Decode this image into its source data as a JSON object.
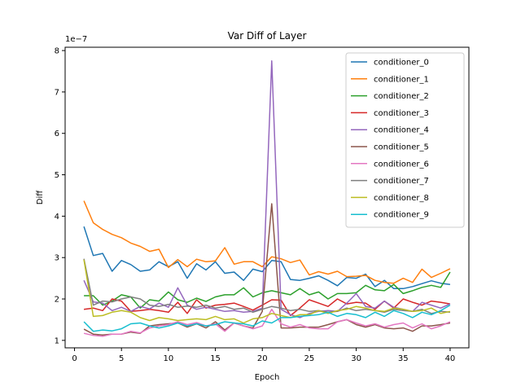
{
  "chart_data": {
    "type": "line",
    "title": "Var Diff of Layer",
    "xlabel": "Epoch",
    "ylabel": "Diff",
    "y_scale_label": "1e−7",
    "y_scale": 1e-07,
    "xlim": [
      -1,
      42
    ],
    "ylim": [
      0.82,
      8.08
    ],
    "xticks": [
      0,
      5,
      10,
      15,
      20,
      25,
      30,
      35,
      40
    ],
    "yticks": [
      1,
      2,
      3,
      4,
      5,
      6,
      7,
      8
    ],
    "grid": false,
    "legend_position": "top-right",
    "x": [
      1,
      2,
      3,
      4,
      5,
      6,
      7,
      8,
      9,
      10,
      11,
      12,
      13,
      14,
      15,
      16,
      17,
      18,
      19,
      20,
      21,
      22,
      23,
      24,
      25,
      26,
      27,
      28,
      29,
      30,
      31,
      32,
      33,
      34,
      35,
      36,
      37,
      38,
      39,
      40
    ],
    "series": [
      {
        "name": "conditioner_0",
        "color": "#1f77b4",
        "values": [
          3.75,
          3.05,
          3.1,
          2.67,
          2.93,
          2.83,
          2.67,
          2.7,
          2.9,
          2.78,
          2.9,
          2.5,
          2.85,
          2.7,
          2.9,
          2.62,
          2.65,
          2.45,
          2.72,
          2.66,
          2.93,
          2.9,
          2.47,
          2.45,
          2.5,
          2.56,
          2.45,
          2.32,
          2.52,
          2.5,
          2.6,
          2.3,
          2.45,
          2.25,
          2.25,
          2.3,
          2.37,
          2.44,
          2.38,
          2.35
        ]
      },
      {
        "name": "conditioner_1",
        "color": "#ff7f0e",
        "values": [
          4.37,
          3.84,
          3.68,
          3.56,
          3.48,
          3.35,
          3.27,
          3.15,
          3.2,
          2.76,
          2.95,
          2.78,
          2.96,
          2.9,
          2.92,
          3.24,
          2.84,
          2.9,
          2.9,
          2.78,
          3.02,
          2.97,
          2.88,
          2.94,
          2.58,
          2.66,
          2.6,
          2.67,
          2.54,
          2.55,
          2.57,
          2.45,
          2.4,
          2.38,
          2.5,
          2.4,
          2.72,
          2.52,
          2.62,
          2.73
        ]
      },
      {
        "name": "conditioner_2",
        "color": "#2ca02c",
        "values": [
          2.08,
          2.08,
          1.85,
          1.95,
          2.1,
          2.05,
          1.78,
          1.98,
          1.95,
          2.17,
          1.98,
          1.92,
          2.02,
          1.94,
          2.05,
          2.1,
          2.1,
          2.27,
          2.05,
          2.15,
          2.2,
          2.15,
          2.1,
          2.25,
          2.1,
          2.17,
          2.0,
          2.13,
          2.13,
          2.15,
          2.33,
          2.22,
          2.2,
          2.35,
          2.13,
          2.2,
          2.28,
          2.33,
          2.28,
          2.65
        ]
      },
      {
        "name": "conditioner_3",
        "color": "#d62728",
        "values": [
          1.75,
          1.78,
          1.72,
          2.0,
          1.95,
          1.7,
          1.72,
          1.75,
          1.72,
          1.68,
          1.92,
          1.65,
          1.98,
          1.78,
          1.85,
          1.87,
          1.9,
          1.82,
          1.73,
          1.85,
          1.98,
          1.97,
          1.6,
          1.78,
          1.98,
          1.9,
          1.82,
          2.0,
          1.88,
          1.92,
          1.9,
          1.75,
          1.95,
          1.78,
          2.0,
          1.92,
          1.85,
          1.95,
          1.92,
          1.88
        ]
      },
      {
        "name": "conditioner_4",
        "color": "#9467bd",
        "values": [
          2.45,
          1.93,
          1.9,
          1.72,
          1.8,
          1.7,
          1.82,
          1.76,
          1.9,
          1.8,
          2.27,
          1.85,
          1.75,
          1.8,
          1.75,
          1.7,
          1.72,
          1.68,
          1.7,
          1.78,
          7.75,
          1.75,
          1.62,
          1.55,
          1.65,
          1.7,
          1.72,
          1.7,
          1.9,
          2.13,
          1.82,
          1.78,
          1.95,
          1.8,
          1.75,
          1.7,
          1.92,
          1.85,
          1.78,
          1.88
        ]
      },
      {
        "name": "conditioner_5",
        "color": "#8c564b",
        "values": [
          1.27,
          1.15,
          1.13,
          1.15,
          1.15,
          1.2,
          1.17,
          1.35,
          1.38,
          1.4,
          1.42,
          1.32,
          1.4,
          1.3,
          1.45,
          1.25,
          1.42,
          1.35,
          1.3,
          1.7,
          4.3,
          1.3,
          1.3,
          1.32,
          1.32,
          1.32,
          1.38,
          1.45,
          1.5,
          1.38,
          1.32,
          1.38,
          1.3,
          1.28,
          1.3,
          1.22,
          1.35,
          1.35,
          1.38,
          1.42
        ]
      },
      {
        "name": "conditioner_6",
        "color": "#e377c2",
        "values": [
          1.17,
          1.12,
          1.1,
          1.15,
          1.15,
          1.22,
          1.18,
          1.3,
          1.35,
          1.38,
          1.45,
          1.38,
          1.43,
          1.35,
          1.4,
          1.22,
          1.42,
          1.35,
          1.28,
          1.35,
          1.75,
          1.4,
          1.32,
          1.38,
          1.3,
          1.28,
          1.28,
          1.45,
          1.5,
          1.42,
          1.35,
          1.4,
          1.32,
          1.38,
          1.42,
          1.3,
          1.4,
          1.28,
          1.35,
          1.45
        ]
      },
      {
        "name": "conditioner_7",
        "color": "#7f7f7f",
        "values": [
          2.97,
          1.85,
          1.95,
          1.93,
          2.0,
          2.05,
          2.0,
          1.85,
          1.82,
          1.87,
          1.8,
          1.83,
          1.8,
          1.85,
          1.78,
          1.82,
          1.75,
          1.78,
          1.68,
          1.75,
          1.82,
          1.78,
          1.72,
          1.75,
          1.7,
          1.72,
          1.68,
          1.7,
          1.78,
          1.72,
          1.75,
          1.72,
          1.68,
          1.75,
          1.72,
          1.7,
          1.75,
          1.65,
          1.7,
          1.68
        ]
      },
      {
        "name": "conditioner_8",
        "color": "#bcbd22",
        "values": [
          2.95,
          1.58,
          1.6,
          1.68,
          1.72,
          1.68,
          1.55,
          1.48,
          1.55,
          1.52,
          1.48,
          1.5,
          1.52,
          1.5,
          1.58,
          1.5,
          1.52,
          1.42,
          1.52,
          1.55,
          1.65,
          1.6,
          1.55,
          1.62,
          1.62,
          1.72,
          1.65,
          1.72,
          1.75,
          1.82,
          1.78,
          1.72,
          1.7,
          1.78,
          1.75,
          1.7,
          1.72,
          1.78,
          1.65,
          1.7
        ]
      },
      {
        "name": "conditioner_9",
        "color": "#17becf",
        "values": [
          1.45,
          1.22,
          1.25,
          1.23,
          1.28,
          1.4,
          1.42,
          1.35,
          1.3,
          1.35,
          1.42,
          1.35,
          1.4,
          1.35,
          1.38,
          1.45,
          1.42,
          1.4,
          1.35,
          1.47,
          1.42,
          1.55,
          1.55,
          1.58,
          1.6,
          1.62,
          1.68,
          1.58,
          1.65,
          1.62,
          1.55,
          1.68,
          1.58,
          1.72,
          1.65,
          1.55,
          1.68,
          1.62,
          1.72,
          1.85
        ]
      }
    ]
  }
}
